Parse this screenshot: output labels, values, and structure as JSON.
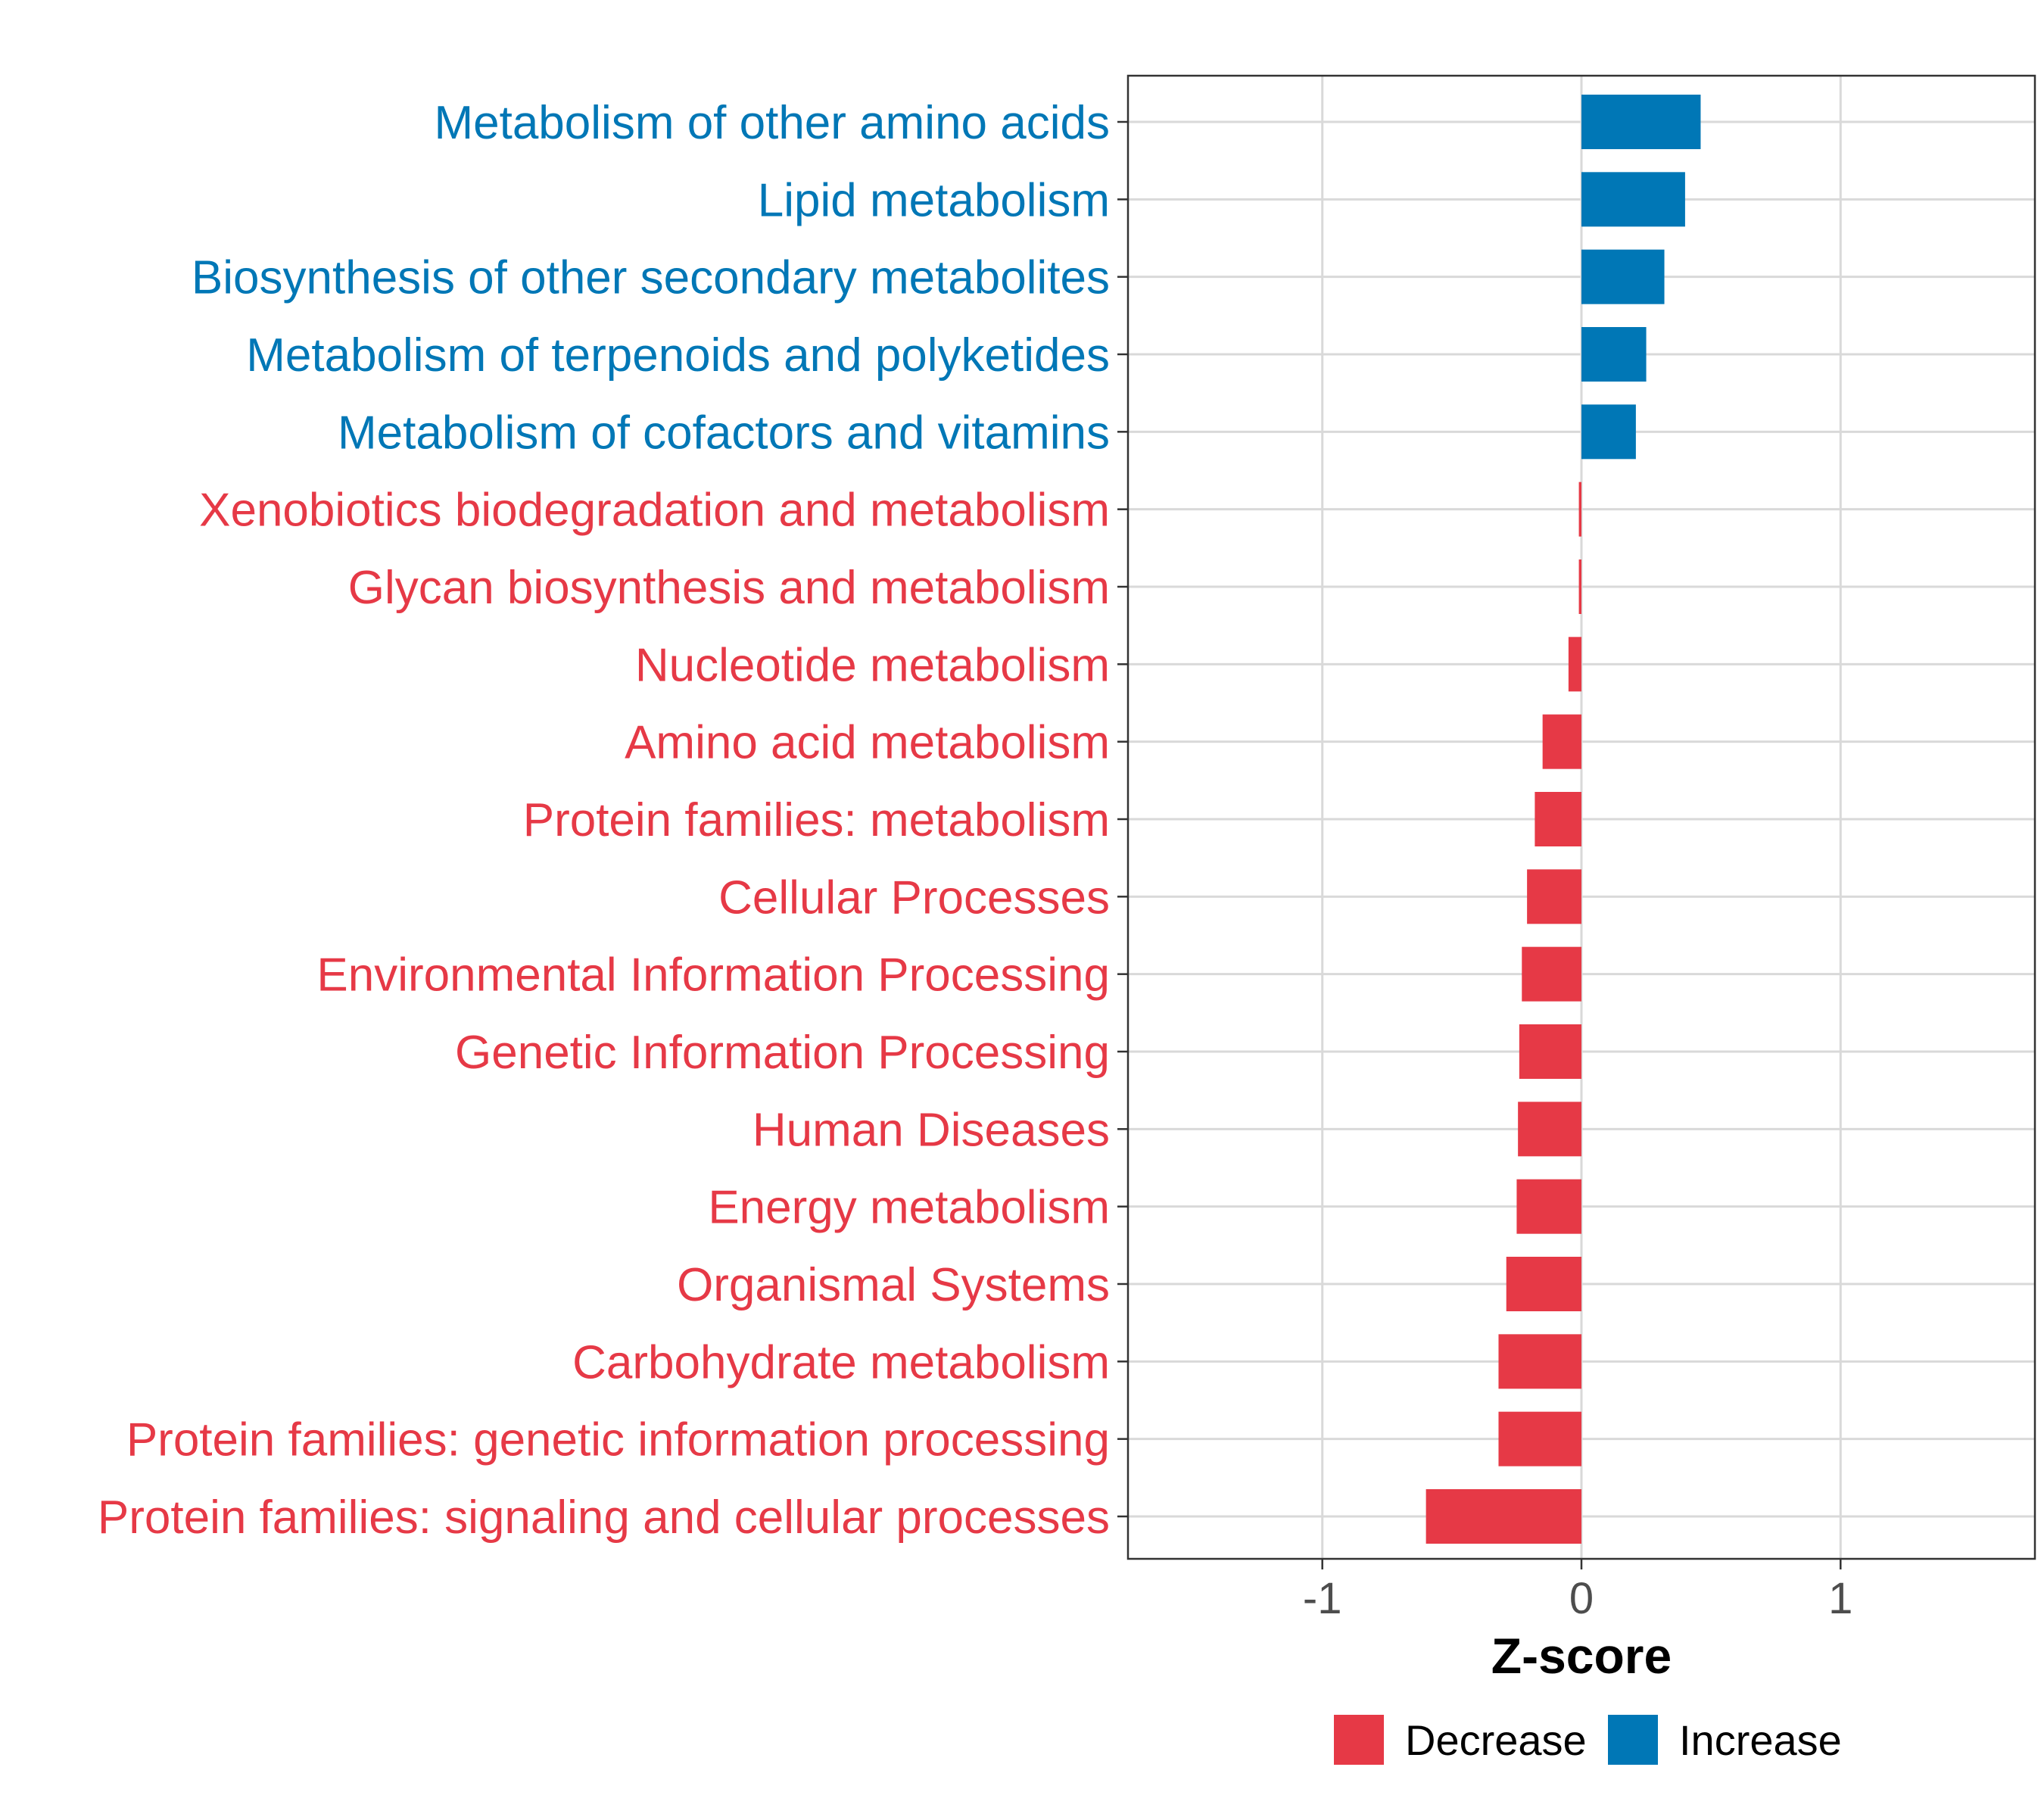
{
  "chart_data": {
    "type": "bar",
    "orientation": "horizontal",
    "title": "",
    "xlabel": "Z-score",
    "ylabel": "",
    "xlim": [
      -1.75,
      1.75
    ],
    "xticks": [
      -1,
      0,
      1
    ],
    "xtick_labels": [
      "-1",
      "0",
      "1"
    ],
    "grid": true,
    "categories": [
      "Metabolism of other amino acids",
      "Lipid metabolism",
      "Biosynthesis of other secondary metabolites",
      "Metabolism of terpenoids and polyketides",
      "Metabolism of cofactors and vitamins",
      "Xenobiotics biodegradation and metabolism",
      "Glycan biosynthesis and metabolism",
      "Nucleotide metabolism",
      "Amino acid metabolism",
      "Protein families: metabolism",
      "Cellular Processes",
      "Environmental Information Processing",
      "Genetic Information Processing",
      "Human Diseases",
      "Energy metabolism",
      "Organismal Systems",
      "Carbohydrate metabolism",
      "Protein families: genetic information processing",
      "Protein families: signaling and cellular processes"
    ],
    "values": [
      0.46,
      0.4,
      0.32,
      0.25,
      0.21,
      -0.01,
      -0.01,
      -0.05,
      -0.15,
      -0.18,
      -0.21,
      -0.23,
      -0.24,
      -0.245,
      -0.25,
      -0.29,
      -0.32,
      -0.32,
      -0.6
    ],
    "groups": [
      "Increase",
      "Increase",
      "Increase",
      "Increase",
      "Increase",
      "Decrease",
      "Decrease",
      "Decrease",
      "Decrease",
      "Decrease",
      "Decrease",
      "Decrease",
      "Decrease",
      "Decrease",
      "Decrease",
      "Decrease",
      "Decrease",
      "Decrease",
      "Decrease"
    ],
    "legend": {
      "position": "bottom",
      "entries": [
        {
          "name": "Decrease",
          "color": "#E63946"
        },
        {
          "name": "Increase",
          "color": "#0077B6"
        }
      ]
    },
    "colors": {
      "Decrease": "#E63946",
      "Increase": "#0077B6"
    }
  }
}
